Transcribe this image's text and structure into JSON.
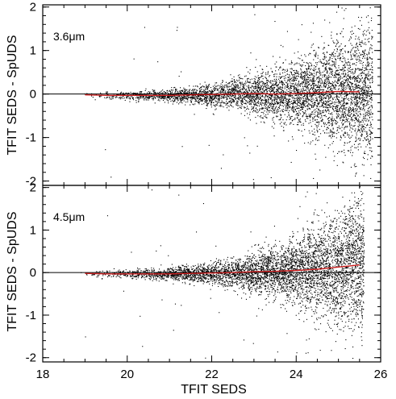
{
  "chart_data": {
    "type": "scatter",
    "xlabel": "TFIT SEDS",
    "ylabel": "TFIT SEDS - SpUDS",
    "xlim": [
      18,
      26
    ],
    "ylim": [
      -2.1,
      2.05
    ],
    "x_ticks": [
      "18",
      "20",
      "22",
      "24",
      "26"
    ],
    "y_ticks": [
      "2",
      "1",
      "0",
      "-1",
      "-2"
    ],
    "grid": false,
    "legend": "none",
    "colors": {
      "points": "#000000",
      "median_line": "#cc2020",
      "zero_line": "#000000"
    },
    "panels": [
      {
        "label": "3.6μm",
        "median_line": {
          "x": [
            19.0,
            19.5,
            20.0,
            20.5,
            21.0,
            21.5,
            22.0,
            22.5,
            23.0,
            23.5,
            24.0,
            24.5,
            25.0,
            25.5
          ],
          "y": [
            -0.02,
            -0.03,
            -0.03,
            -0.03,
            -0.03,
            -0.02,
            -0.01,
            0.0,
            0.01,
            0.0,
            0.01,
            0.03,
            0.06,
            0.05
          ]
        },
        "spread": {
          "x": [
            19.0,
            20.0,
            21.0,
            22.0,
            23.0,
            24.0,
            25.0,
            25.8
          ],
          "sigma": [
            0.04,
            0.05,
            0.07,
            0.12,
            0.22,
            0.38,
            0.6,
            0.8
          ]
        }
      },
      {
        "label": "4.5μm",
        "median_line": {
          "x": [
            19.0,
            19.5,
            20.0,
            20.5,
            21.0,
            21.5,
            22.0,
            22.5,
            23.0,
            23.5,
            24.0,
            24.5,
            25.0,
            25.5
          ],
          "y": [
            -0.02,
            -0.03,
            -0.03,
            -0.03,
            -0.03,
            -0.02,
            -0.01,
            0.0,
            0.02,
            0.03,
            0.05,
            0.08,
            0.13,
            0.18
          ]
        },
        "spread": {
          "x": [
            19.0,
            20.0,
            21.0,
            22.0,
            23.0,
            24.0,
            25.0,
            25.6
          ],
          "sigma": [
            0.04,
            0.05,
            0.07,
            0.12,
            0.22,
            0.4,
            0.65,
            0.85
          ]
        }
      }
    ]
  }
}
